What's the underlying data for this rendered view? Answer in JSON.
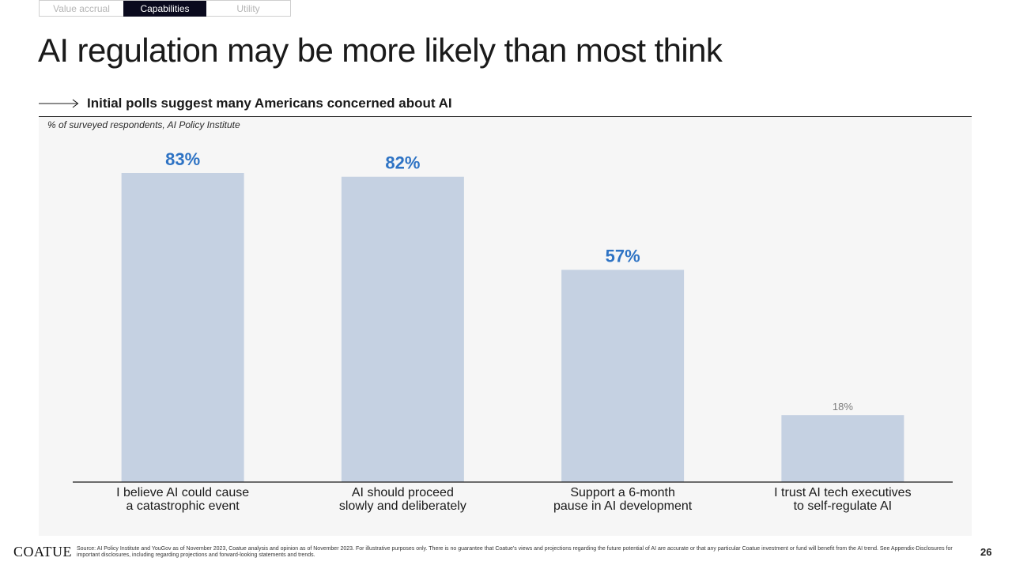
{
  "tabs": [
    {
      "label": "Value accrual",
      "active": false
    },
    {
      "label": "Capabilities",
      "active": true
    },
    {
      "label": "Utility",
      "active": false
    }
  ],
  "title": "AI regulation may be more likely than most think",
  "subtitle": "Initial polls suggest many Americans concerned about AI",
  "chart_note": "% of surveyed respondents, AI Policy Institute",
  "chart_data": {
    "type": "bar",
    "categories": [
      [
        "I believe AI could cause",
        "a catastrophic event"
      ],
      [
        "AI should proceed",
        "slowly and deliberately"
      ],
      [
        "Support a 6-month",
        "pause in AI development"
      ],
      [
        "I trust AI tech executives",
        "to self-regulate AI"
      ]
    ],
    "values": [
      83,
      82,
      57,
      18
    ],
    "value_labels": [
      "83%",
      "82%",
      "57%",
      "18%"
    ],
    "highlight": [
      true,
      true,
      true,
      false
    ],
    "unit": "%",
    "ylim": [
      0,
      83
    ],
    "title": "Initial polls suggest many Americans concerned about AI",
    "xlabel": "",
    "ylabel": "% of surveyed respondents",
    "colors": {
      "bar": "#c5d1e2",
      "highlight_label": "#2e73c4",
      "muted_label": "#7d7d7d",
      "axis": "#1a1a1a"
    }
  },
  "footer": {
    "logo": "COATUE",
    "source": "Source: AI Policy Institute and YouGov as of November 2023, Coatue analysis and opinion as of November 2023. For illustrative purposes only. There is no guarantee that Coatue's views and projections regarding the future potential of AI are accurate or that any particular Coatue investment or fund will benefit from the AI trend. See Appendix-Disclosures for important disclosures, including regarding projections and forward-looking statements and trends.",
    "page_number": "26"
  },
  "icons": {
    "arrow": "long-right-arrow-icon"
  }
}
